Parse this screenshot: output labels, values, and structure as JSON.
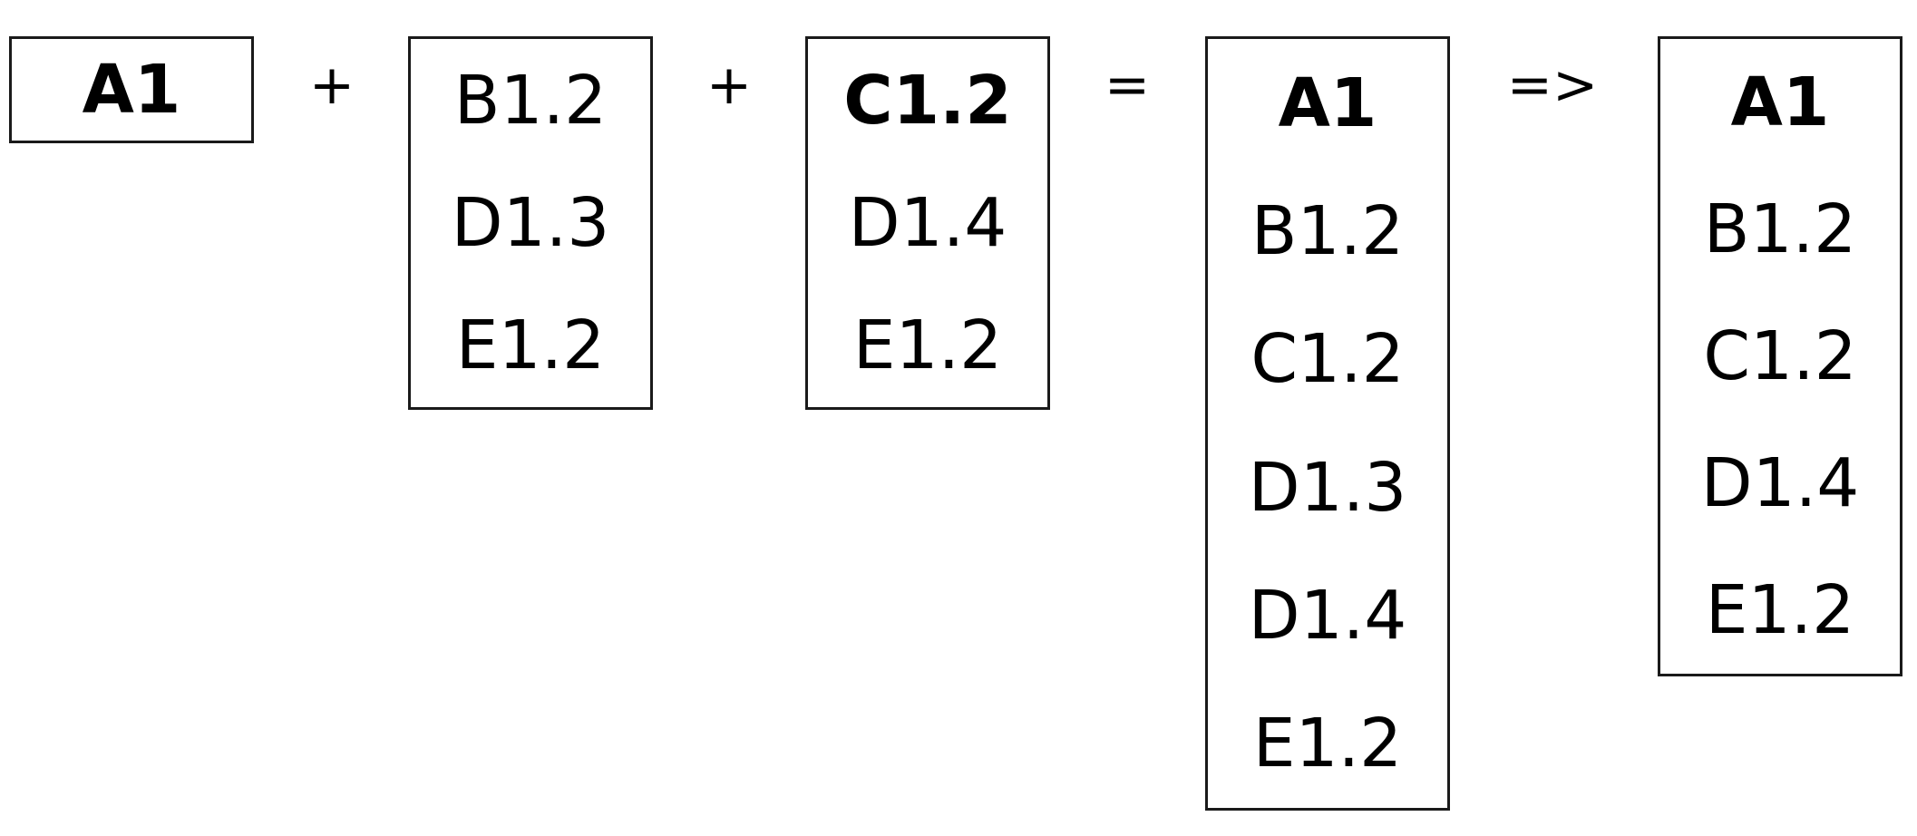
{
  "diagram": {
    "box_a": {
      "items": [
        {
          "label": "A1",
          "bold": true
        }
      ]
    },
    "op_plus_1": "+",
    "box_b": {
      "items": [
        {
          "label": "B1.2",
          "bold": false
        },
        {
          "label": "D1.3",
          "bold": false
        },
        {
          "label": "E1.2",
          "bold": false
        }
      ]
    },
    "op_plus_2": "+",
    "box_c": {
      "items": [
        {
          "label": "C1.2",
          "bold": true
        },
        {
          "label": "D1.4",
          "bold": false
        },
        {
          "label": "E1.2",
          "bold": false
        }
      ]
    },
    "op_equals": "=",
    "box_sum": {
      "items": [
        {
          "label": "A1",
          "bold": true
        },
        {
          "label": "B1.2",
          "bold": false
        },
        {
          "label": "C1.2",
          "bold": false
        },
        {
          "label": "D1.3",
          "bold": false
        },
        {
          "label": "D1.4",
          "bold": false
        },
        {
          "label": "E1.2",
          "bold": false
        }
      ]
    },
    "op_arrow": "=>",
    "box_result": {
      "items": [
        {
          "label": "A1",
          "bold": true
        },
        {
          "label": "B1.2",
          "bold": false
        },
        {
          "label": "C1.2",
          "bold": false
        },
        {
          "label": "D1.4",
          "bold": false
        },
        {
          "label": "E1.2",
          "bold": false
        }
      ]
    }
  }
}
